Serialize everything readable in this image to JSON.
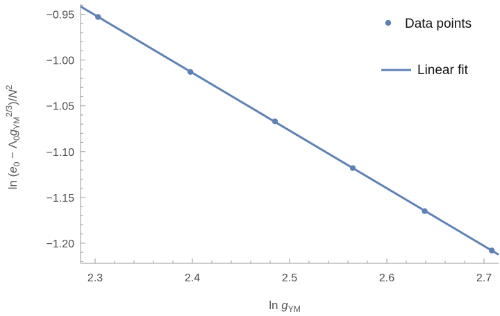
{
  "chart_data": {
    "type": "scatter",
    "xlim": [
      2.285,
      2.715
    ],
    "ylim": [
      -1.222,
      -0.939
    ],
    "x_ticks": [
      2.3,
      2.4,
      2.5,
      2.6,
      2.7
    ],
    "x_tick_labels": [
      "2.3",
      "2.4",
      "2.5",
      "2.6",
      "2.7"
    ],
    "y_ticks": [
      -0.95,
      -1.0,
      -1.05,
      -1.1,
      -1.15,
      -1.2
    ],
    "y_tick_labels": [
      "−0.95",
      "−1.00",
      "−1.05",
      "−1.10",
      "−1.15",
      "−1.20"
    ],
    "xlabel": {
      "base": "ln ",
      "var": "g",
      "sub": "YM"
    },
    "ylabel": "ln (e₀ − Λ₀g_YM^{2/3})/N²",
    "grid": false,
    "legend_position": "top-right",
    "series": [
      {
        "name": "Data points",
        "kind": "points",
        "color": "#5e81b5",
        "x": [
          2.303,
          2.398,
          2.485,
          2.565,
          2.639,
          2.708
        ],
        "y": [
          -0.953,
          -1.013,
          -1.067,
          -1.118,
          -1.165,
          -1.208
        ]
      },
      {
        "name": "Linear fit",
        "kind": "line",
        "color": "#5e81b5",
        "x": [
          2.285,
          2.715
        ],
        "y": [
          -0.9415,
          -1.2125
        ]
      }
    ]
  }
}
